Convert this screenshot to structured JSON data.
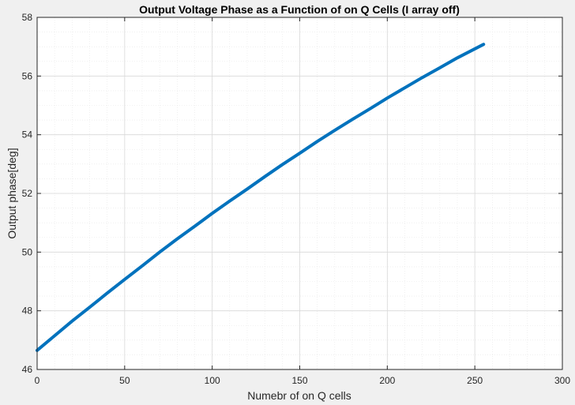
{
  "chart_data": {
    "type": "line",
    "title": "Output Voltage Phase as a Function of on Q Cells (I array off)",
    "xlabel": "Numebr of on Q cells",
    "ylabel": "Output phase[deg]",
    "xlim": [
      0,
      300
    ],
    "ylim": [
      46,
      58
    ],
    "x_ticks": [
      0,
      50,
      100,
      150,
      200,
      250,
      300
    ],
    "y_ticks": [
      46,
      48,
      50,
      52,
      54,
      56,
      58
    ],
    "grid": true,
    "minor_grid": true,
    "line_color": "#0072bd",
    "series": [
      {
        "x": [
          0,
          10,
          20,
          30,
          40,
          50,
          60,
          70,
          80,
          90,
          100,
          110,
          120,
          130,
          140,
          150,
          160,
          170,
          180,
          190,
          200,
          210,
          220,
          230,
          240,
          255
        ],
        "y": [
          46.65,
          47.15,
          47.65,
          48.12,
          48.6,
          49.07,
          49.53,
          50.0,
          50.45,
          50.88,
          51.32,
          51.74,
          52.15,
          52.57,
          52.98,
          53.37,
          53.77,
          54.15,
          54.52,
          54.88,
          55.25,
          55.6,
          55.95,
          56.28,
          56.62,
          57.08
        ]
      }
    ]
  }
}
